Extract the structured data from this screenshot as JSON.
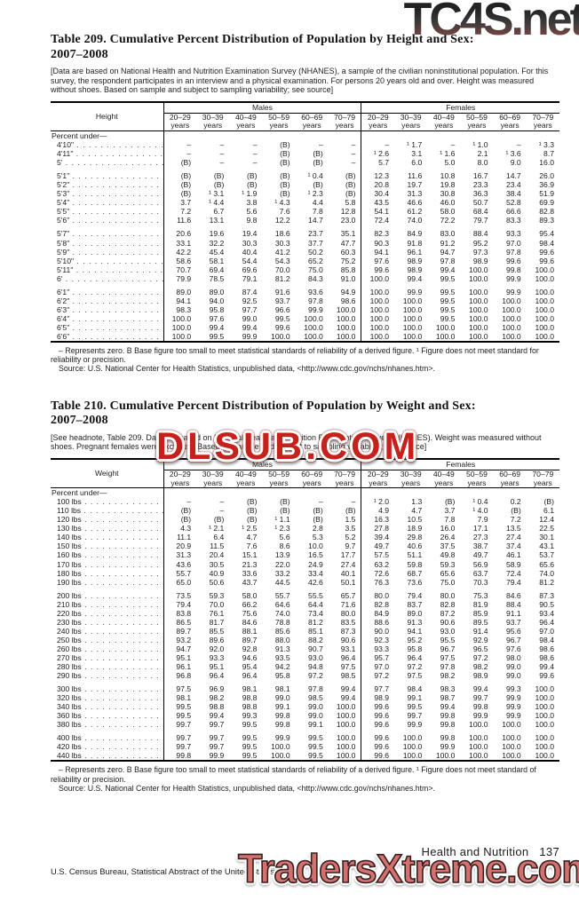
{
  "watermarks": {
    "top": "TC4S.net",
    "middle": "DLSUB.COM",
    "bottom": "TradersXtreme.com"
  },
  "page_footer": {
    "section": "Health and Nutrition",
    "page_number": "137",
    "credit": "U.S. Census Bureau, Statistical Abstract of the United States: 2012"
  },
  "table209": {
    "title_line1": "Table 209. Cumulative Percent Distribution of Population by Height and Sex:",
    "title_line2": "2007–2008",
    "headnote": "[Data are based on National Health and Nutrition Examination Survey (NHANES), a sample of the civilian noninstitutional population. For this survey, the respondent participates in an interview and a physical examination. For persons 20 years old and over. Height was measured without shoes. Based on sample and subject to sampling variability; see source]",
    "stub_header": "Height",
    "group_headers": [
      "Males",
      "Females"
    ],
    "age_columns": [
      "20–29",
      "30–39",
      "40–49",
      "50–59",
      "60–69",
      "70–79"
    ],
    "age_suffix": "years",
    "section_label": "Percent under—",
    "rows": [
      {
        "label": "4'10\"",
        "values": [
          "–",
          "–",
          "–",
          "(B)",
          "–",
          "–",
          "–",
          "¹ 1.7",
          "–",
          "¹ 1.0",
          "–",
          "¹ 3.3"
        ]
      },
      {
        "label": "4'11\"",
        "values": [
          "–",
          "–",
          "–",
          "(B)",
          "(B)",
          "–",
          "¹ 2.6",
          "3.1",
          "¹ 1.6",
          "2.1",
          "¹ 3.6",
          "8.7"
        ]
      },
      {
        "label": "5'",
        "values": [
          "(B)",
          "–",
          "–",
          "(B)",
          "(B)",
          "–",
          "5.7",
          "6.0",
          "5.0",
          "8.0",
          "9.0",
          "16.0"
        ]
      },
      {
        "label": "5'1\"",
        "gap": true,
        "values": [
          "(B)",
          "(B)",
          "(B)",
          "(B)",
          "¹ 0.4",
          "(B)",
          "12.3",
          "11.6",
          "10.8",
          "16.7",
          "14.7",
          "26.0"
        ]
      },
      {
        "label": "5'2\"",
        "values": [
          "(B)",
          "(B)",
          "(B)",
          "(B)",
          "(B)",
          "(B)",
          "20.8",
          "19.7",
          "19.8",
          "23.3",
          "23.4",
          "36.9"
        ]
      },
      {
        "label": "5'3\"",
        "values": [
          "(B)",
          "¹ 3.1",
          "¹ 1.9",
          "(B)",
          "¹ 2.3",
          "(B)",
          "30.4",
          "31.3",
          "30.8",
          "36.3",
          "38.4",
          "51.9"
        ]
      },
      {
        "label": "5'4\"",
        "values": [
          "3.7",
          "¹ 4.4",
          "3.8",
          "¹ 4.3",
          "4.4",
          "5.8",
          "43.5",
          "46.6",
          "46.0",
          "50.7",
          "52.8",
          "69.9"
        ]
      },
      {
        "label": "5'5\"",
        "values": [
          "7.2",
          "6.7",
          "5.6",
          "7.6",
          "7.8",
          "12.8",
          "54.1",
          "61.2",
          "58.0",
          "68.4",
          "66.6",
          "82.8"
        ]
      },
      {
        "label": "5'6\"",
        "values": [
          "11.6",
          "13.1",
          "9.8",
          "12.2",
          "14.7",
          "23.0",
          "72.4",
          "74.0",
          "72.2",
          "79.7",
          "83.3",
          "89.3"
        ]
      },
      {
        "label": "5'7\"",
        "gap": true,
        "values": [
          "20.6",
          "19.6",
          "19.4",
          "18.6",
          "23.7",
          "35.1",
          "82.3",
          "84.9",
          "83.0",
          "88.4",
          "93.3",
          "95.4"
        ]
      },
      {
        "label": "5'8\"",
        "values": [
          "33.1",
          "32.2",
          "30.3",
          "30.3",
          "37.7",
          "47.7",
          "90.3",
          "91.8",
          "91.2",
          "95.2",
          "97.0",
          "98.4"
        ]
      },
      {
        "label": "5'9\"",
        "values": [
          "42.2",
          "45.4",
          "40.4",
          "41.2",
          "50.2",
          "60.3",
          "94.1",
          "96.1",
          "94.7",
          "97.3",
          "97.8",
          "99.6"
        ]
      },
      {
        "label": "5'10\"",
        "values": [
          "58.6",
          "58.1",
          "54.4",
          "54.3",
          "65.2",
          "75.2",
          "97.6",
          "98.9",
          "97.8",
          "98.9",
          "99.6",
          "99.6"
        ]
      },
      {
        "label": "5'11\"",
        "values": [
          "70.7",
          "69.4",
          "69.6",
          "70.0",
          "75.0",
          "85.8",
          "99.6",
          "98.9",
          "99.4",
          "100.0",
          "99.8",
          "100.0"
        ]
      },
      {
        "label": "6'",
        "values": [
          "79.9",
          "78.5",
          "79.1",
          "81.2",
          "84.3",
          "91.0",
          "100.0",
          "99.4",
          "99.5",
          "100.0",
          "99.9",
          "100.0"
        ]
      },
      {
        "label": "6'1\"",
        "gap": true,
        "values": [
          "89.0",
          "89.0",
          "87.4",
          "91.6",
          "93.6",
          "94.9",
          "100.0",
          "99.9",
          "99.5",
          "100.0",
          "99.9",
          "100.0"
        ]
      },
      {
        "label": "6'2\"",
        "values": [
          "94.1",
          "94.0",
          "92.5",
          "93.7",
          "97.8",
          "98.6",
          "100.0",
          "100.0",
          "99.5",
          "100.0",
          "100.0",
          "100.0"
        ]
      },
      {
        "label": "6'3\"",
        "values": [
          "98.3",
          "95.8",
          "97.7",
          "96.6",
          "99.9",
          "100.0",
          "100.0",
          "100.0",
          "99.5",
          "100.0",
          "100.0",
          "100.0"
        ]
      },
      {
        "label": "6'4\"",
        "values": [
          "100.0",
          "97.6",
          "99.0",
          "99.5",
          "100.0",
          "100.0",
          "100.0",
          "100.0",
          "99.5",
          "100.0",
          "100.0",
          "100.0"
        ]
      },
      {
        "label": "6'5\"",
        "values": [
          "100.0",
          "99.4",
          "99.4",
          "99.6",
          "100.0",
          "100.0",
          "100.0",
          "100.0",
          "100.0",
          "100.0",
          "100.0",
          "100.0"
        ]
      },
      {
        "label": "6'6\"",
        "values": [
          "100.0",
          "99.5",
          "99.9",
          "100.0",
          "100.0",
          "100.0",
          "100.0",
          "100.0",
          "100.0",
          "100.0",
          "100.0",
          "100.0"
        ]
      }
    ],
    "footnote": "– Represents zero. B Base figure too small to meet statistical standards of reliability of a derived figure. ¹ Figure does not meet standard for reliability or precision.",
    "source": "Source: U.S. National Center for Health Statistics, unpublished data, <http://www.cdc.gov/nchs/nhanes.htm>."
  },
  "table210": {
    "title_line1": "Table 210. Cumulative Percent Distribution of Population by Weight and Sex:",
    "title_line2": "2007–2008",
    "headnote": "[See headnote, Table 209. Data are based on National Health and Nutrition Examination Survey (NHANES). Weight was measured without shoes. Pregnant females were excluded. Based on sample and subject to sampling variability; see source]",
    "stub_header": "Weight",
    "group_headers": [
      "Males",
      "Females"
    ],
    "age_columns": [
      "20–29",
      "30–39",
      "40–49",
      "50–59",
      "60–69",
      "70–79"
    ],
    "age_suffix": "years",
    "section_label": "Percent under—",
    "rows": [
      {
        "label": "100 lbs",
        "values": [
          "–",
          "–",
          "(B)",
          "(B)",
          "–",
          "–",
          "¹ 2.0",
          "1.3",
          "(B)",
          "¹ 0.4",
          "0.2",
          "(B)"
        ]
      },
      {
        "label": "110 lbs",
        "values": [
          "(B)",
          "–",
          "(B)",
          "(B)",
          "(B)",
          "(B)",
          "4.9",
          "4.7",
          "3.7",
          "¹ 4.0",
          "(B)",
          "6.1"
        ]
      },
      {
        "label": "120 lbs",
        "values": [
          "(B)",
          "(B)",
          "(B)",
          "¹ 1.1",
          "(B)",
          "1.5",
          "16.3",
          "10.5",
          "7.8",
          "7.9",
          "7.2",
          "12.4"
        ]
      },
      {
        "label": "130 lbs",
        "values": [
          "4.3",
          "¹ 2.1",
          "¹ 2.5",
          "¹ 2.3",
          "2.8",
          "3.5",
          "27.8",
          "18.9",
          "16.0",
          "17.1",
          "13.5",
          "22.5"
        ]
      },
      {
        "label": "140 lbs",
        "values": [
          "11.1",
          "6.4",
          "4.7",
          "5.6",
          "5.3",
          "5.2",
          "39.4",
          "29.8",
          "26.4",
          "27.3",
          "27.4",
          "30.1"
        ]
      },
      {
        "label": "150 lbs",
        "values": [
          "20.9",
          "11.5",
          "7.6",
          "8.6",
          "10.0",
          "9.7",
          "49.7",
          "40.6",
          "37.5",
          "38.7",
          "37.4",
          "43.1"
        ]
      },
      {
        "label": "160 lbs",
        "values": [
          "31.3",
          "20.4",
          "15.1",
          "13.9",
          "16.5",
          "17.7",
          "57.5",
          "51.1",
          "49.8",
          "49.7",
          "46.1",
          "53.7"
        ]
      },
      {
        "label": "170 lbs",
        "values": [
          "43.6",
          "30.5",
          "21.3",
          "22.0",
          "24.9",
          "27.4",
          "63.2",
          "59.8",
          "59.3",
          "56.9",
          "58.9",
          "65.6"
        ]
      },
      {
        "label": "180 lbs",
        "values": [
          "55.7",
          "40.9",
          "33.6",
          "33.2",
          "33.4",
          "40.1",
          "72.6",
          "68.7",
          "65.6",
          "63.7",
          "72.4",
          "74.0"
        ]
      },
      {
        "label": "190 lbs",
        "values": [
          "65.0",
          "50.6",
          "43.7",
          "44.5",
          "42.6",
          "50.1",
          "76.3",
          "73.6",
          "75.0",
          "70.3",
          "79.4",
          "81.2"
        ]
      },
      {
        "label": "200 lbs",
        "gap": true,
        "values": [
          "73.5",
          "59.3",
          "58.0",
          "55.7",
          "55.5",
          "65.7",
          "80.0",
          "79.4",
          "80.0",
          "75.3",
          "84.6",
          "87.3"
        ]
      },
      {
        "label": "210 lbs",
        "values": [
          "79.4",
          "70.0",
          "66.2",
          "64.6",
          "64.4",
          "71.6",
          "82.8",
          "83.7",
          "82.8",
          "81.9",
          "88.4",
          "90.5"
        ]
      },
      {
        "label": "220 lbs",
        "values": [
          "83.8",
          "76.1",
          "75.6",
          "74.0",
          "73.4",
          "80.0",
          "84.9",
          "89.0",
          "87.2",
          "85.9",
          "91.1",
          "93.4"
        ]
      },
      {
        "label": "230 lbs",
        "values": [
          "86.5",
          "81.7",
          "84.6",
          "78.8",
          "81.2",
          "83.5",
          "88.6",
          "91.3",
          "90.6",
          "89.5",
          "93.7",
          "96.4"
        ]
      },
      {
        "label": "240 lbs",
        "values": [
          "89.7",
          "85.5",
          "88.1",
          "85.6",
          "85.1",
          "87.3",
          "90.0",
          "94.1",
          "93.0",
          "91.4",
          "95.6",
          "97.0"
        ]
      },
      {
        "label": "250 lbs",
        "values": [
          "93.2",
          "89.6",
          "89.7",
          "88.0",
          "88.2",
          "90.6",
          "92.3",
          "95.2",
          "95.5",
          "92.9",
          "96.7",
          "98.4"
        ]
      },
      {
        "label": "260 lbs",
        "values": [
          "94.7",
          "92.0",
          "92.8",
          "91.3",
          "90.7",
          "93.1",
          "93.3",
          "95.8",
          "96.7",
          "96.5",
          "97.6",
          "98.6"
        ]
      },
      {
        "label": "270 lbs",
        "values": [
          "95.1",
          "93.3",
          "94.6",
          "93.5",
          "93.0",
          "96.4",
          "95.7",
          "96.4",
          "97.5",
          "97.2",
          "98.0",
          "98.6"
        ]
      },
      {
        "label": "280 lbs",
        "values": [
          "96.1",
          "95.1",
          "95.4",
          "94.2",
          "94.8",
          "97.5",
          "97.0",
          "97.2",
          "97.8",
          "98.2",
          "99.0",
          "99.4"
        ]
      },
      {
        "label": "290 lbs",
        "values": [
          "96.8",
          "96.4",
          "96.4",
          "95.8",
          "97.2",
          "98.5",
          "97.2",
          "97.5",
          "98.2",
          "98.9",
          "99.0",
          "99.6"
        ]
      },
      {
        "label": "300 lbs",
        "gap": true,
        "values": [
          "97.5",
          "96.9",
          "98.1",
          "98.1",
          "97.8",
          "99.4",
          "97.7",
          "98.4",
          "98.3",
          "99.4",
          "99.3",
          "100.0"
        ]
      },
      {
        "label": "320 lbs",
        "values": [
          "98.1",
          "98.2",
          "98.8",
          "99.0",
          "98.5",
          "99.4",
          "98.9",
          "99.1",
          "98.7",
          "99.7",
          "99.9",
          "100.0"
        ]
      },
      {
        "label": "340 lbs",
        "values": [
          "99.5",
          "98.8",
          "98.8",
          "99.1",
          "99.0",
          "100.0",
          "99.6",
          "99.5",
          "99.4",
          "99.8",
          "99.9",
          "100.0"
        ]
      },
      {
        "label": "360 lbs",
        "values": [
          "99.5",
          "99.4",
          "99.3",
          "99.8",
          "99.0",
          "100.0",
          "99.6",
          "99.7",
          "99.8",
          "99.9",
          "99.9",
          "100.0"
        ]
      },
      {
        "label": "380 lbs",
        "values": [
          "99.7",
          "99.7",
          "99.5",
          "99.8",
          "99.1",
          "100.0",
          "99.6",
          "99.9",
          "99.8",
          "100.0",
          "100.0",
          "100.0"
        ]
      },
      {
        "label": "400 lbs",
        "gap": true,
        "values": [
          "99.7",
          "99.7",
          "99.5",
          "99.9",
          "99.5",
          "100.0",
          "99.6",
          "100.0",
          "99.8",
          "100.0",
          "100.0",
          "100.0"
        ]
      },
      {
        "label": "420 lbs",
        "values": [
          "99.7",
          "99.7",
          "99.5",
          "100.0",
          "99.5",
          "100.0",
          "99.6",
          "100.0",
          "99.9",
          "100.0",
          "100.0",
          "100.0"
        ]
      },
      {
        "label": "440 lbs",
        "values": [
          "99.8",
          "99.9",
          "99.5",
          "100.0",
          "99.5",
          "100.0",
          "99.6",
          "100.0",
          "100.0",
          "100.0",
          "100.0",
          "100.0"
        ]
      }
    ],
    "footnote": "– Represents zero. B Base figure too small to meet statistical standards of reliability of a derived figure. ¹ Figure does not meet standard of reliability or precision.",
    "source": "Source: U.S. National Center for Health Statistics, unpublished data, <http://www.cdc.gov/nchs/nhanes.htm>."
  }
}
